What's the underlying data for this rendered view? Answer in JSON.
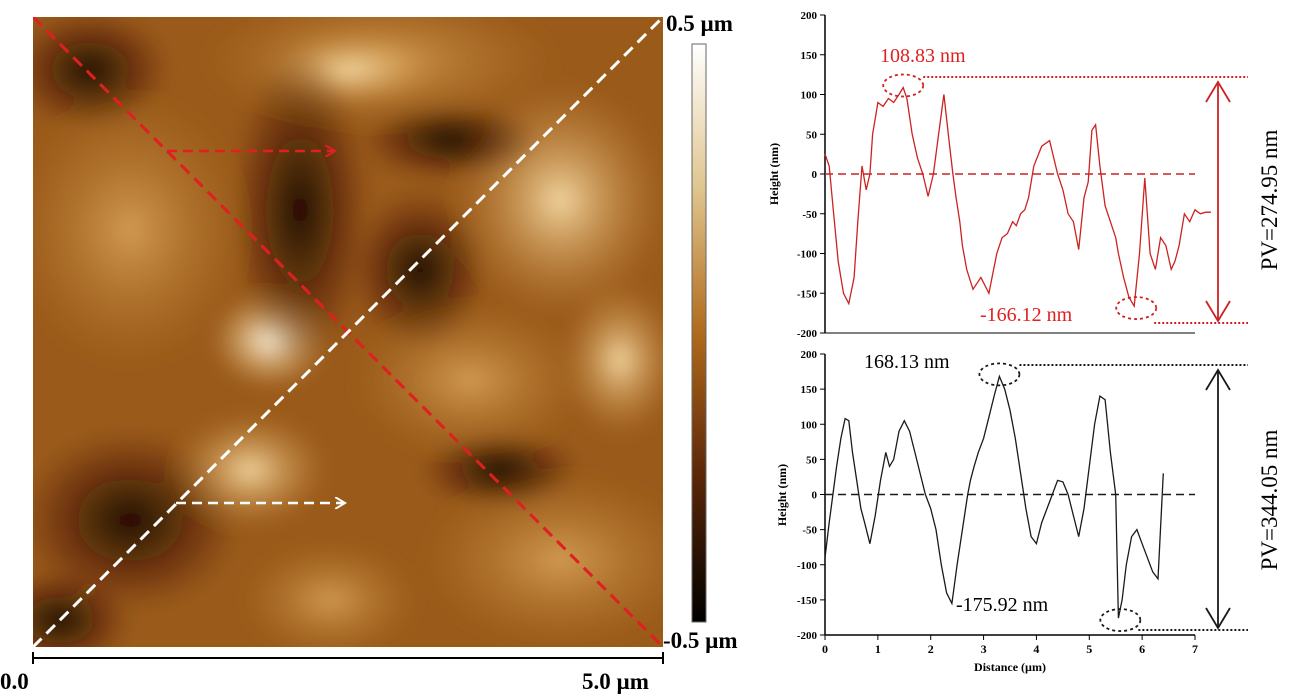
{
  "afm_image": {
    "scale_label_top": "0.5 µm",
    "scale_label_bottom": "-0.5 µm",
    "x_axis_start": "0.0",
    "x_axis_end": "5.0 µm",
    "colors": {
      "red_line": "#e02020",
      "white_line": "#ffffff",
      "afm_dark": "#1a0500",
      "afm_mid": "#b06a1c",
      "afm_light": "#fff4da"
    }
  },
  "chart_data": [
    {
      "type": "line",
      "ylabel": "Height (nm)",
      "xlabel": "",
      "xlim": [
        0,
        7
      ],
      "ylim": [
        -200,
        200
      ],
      "yticks": [
        -200,
        -150,
        -100,
        -50,
        0,
        50,
        100,
        150,
        200
      ],
      "baseline": 0,
      "color": "#cc2222",
      "series": [
        {
          "x": [
            0,
            0.08,
            0.15,
            0.25,
            0.35,
            0.45,
            0.55,
            0.62,
            0.7,
            0.78,
            0.85,
            0.9,
            1.0,
            1.1,
            1.2,
            1.3,
            1.4,
            1.48,
            1.55,
            1.65,
            1.75,
            1.85,
            1.95,
            2.05,
            2.15,
            2.25,
            2.35,
            2.42,
            2.48,
            2.55,
            2.6,
            2.68,
            2.8,
            2.95,
            3.1,
            3.25,
            3.35,
            3.45,
            3.55,
            3.62,
            3.7,
            3.78,
            3.85,
            3.95,
            4.1,
            4.25,
            4.4,
            4.5,
            4.6,
            4.7,
            4.8,
            4.9,
            4.98,
            5.05,
            5.12,
            5.2,
            5.3,
            5.4,
            5.5,
            5.55,
            5.65,
            5.75,
            5.85,
            5.95,
            6.05,
            6.15,
            6.25,
            6.35,
            6.45,
            6.55,
            6.62,
            6.7,
            6.8,
            6.9,
            7.0,
            7.1,
            7.2,
            7.3
          ],
          "y": [
            25,
            10,
            -40,
            -110,
            -150,
            -163,
            -130,
            -60,
            10,
            -20,
            0,
            50,
            90,
            85,
            95,
            90,
            100,
            108.83,
            95,
            50,
            20,
            0,
            -28,
            0,
            50,
            100,
            40,
            0,
            -30,
            -60,
            -90,
            -120,
            -145,
            -130,
            -150,
            -100,
            -80,
            -75,
            -60,
            -65,
            -50,
            -45,
            -30,
            10,
            35,
            42,
            0,
            -20,
            -50,
            -60,
            -95,
            -30,
            -10,
            55,
            62,
            10,
            -40,
            -60,
            -80,
            -100,
            -130,
            -155,
            -166.12,
            -100,
            -5,
            -100,
            -120,
            -80,
            -90,
            -120,
            -110,
            -90,
            -50,
            -60,
            -45,
            -50,
            -48,
            -48
          ]
        }
      ],
      "annotations": {
        "max_label": "108.83 nm",
        "min_label": "-166.12 nm",
        "pv_label": "PV=274.95 nm"
      }
    },
    {
      "type": "line",
      "ylabel": "Height (nm)",
      "xlabel": "Distance (µm)",
      "xlim": [
        0,
        7
      ],
      "ylim": [
        -200,
        200
      ],
      "yticks": [
        -200,
        -150,
        -100,
        -50,
        0,
        50,
        100,
        150,
        200
      ],
      "xticks": [
        0,
        1,
        2,
        3,
        4,
        5,
        6,
        7
      ],
      "baseline": 0,
      "color": "#1a1a1a",
      "series": [
        {
          "x": [
            0,
            0.08,
            0.15,
            0.22,
            0.3,
            0.38,
            0.45,
            0.52,
            0.6,
            0.68,
            0.75,
            0.85,
            0.95,
            1.05,
            1.15,
            1.22,
            1.3,
            1.4,
            1.5,
            1.6,
            1.7,
            1.8,
            1.9,
            2.0,
            2.1,
            2.2,
            2.3,
            2.4,
            2.5,
            2.6,
            2.7,
            2.75,
            2.82,
            2.9,
            3.0,
            3.1,
            3.2,
            3.3,
            3.4,
            3.5,
            3.6,
            3.7,
            3.8,
            3.9,
            4.0,
            4.1,
            4.2,
            4.3,
            4.4,
            4.5,
            4.6,
            4.7,
            4.8,
            4.9,
            5.0,
            5.1,
            5.2,
            5.3,
            5.4,
            5.5,
            5.55,
            5.62,
            5.7,
            5.8,
            5.9,
            6.0,
            6.1,
            6.2,
            6.3,
            6.4
          ],
          "y": [
            -90,
            -40,
            0,
            40,
            80,
            108,
            105,
            60,
            20,
            -20,
            -40,
            -70,
            -30,
            20,
            60,
            40,
            50,
            90,
            105,
            90,
            60,
            30,
            0,
            -20,
            -50,
            -100,
            -140,
            -155,
            -100,
            -50,
            0,
            20,
            40,
            60,
            80,
            110,
            140,
            168.13,
            150,
            120,
            80,
            30,
            -20,
            -60,
            -70,
            -40,
            -20,
            0,
            20,
            18,
            0,
            -30,
            -60,
            -20,
            40,
            100,
            140,
            135,
            60,
            0,
            -175.92,
            -150,
            -100,
            -60,
            -50,
            -70,
            -90,
            -110,
            -120,
            30
          ]
        }
      ],
      "annotations": {
        "max_label": "168.13 nm",
        "min_label": "-175.92 nm",
        "pv_label": "PV=344.05 nm"
      }
    }
  ]
}
